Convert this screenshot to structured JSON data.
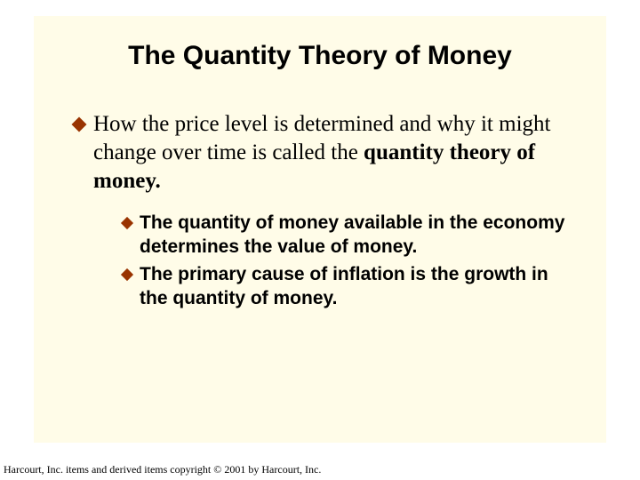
{
  "slide": {
    "background_color": "#fffce8",
    "title": "The Quantity Theory of Money",
    "title_fontsize": 30,
    "title_color": "#000000",
    "bullet_color": "#993300",
    "level1": {
      "prefix": "How ",
      "body": "the price level is determined and why it might change over time is called the ",
      "bold_tail": "quantity theory of money.",
      "fontsize": 25
    },
    "level2": [
      {
        "text": "The quantity of money available in the economy determines the value of money."
      },
      {
        "text": "The primary cause of inflation is the growth in the quantity of money."
      }
    ],
    "level2_fontsize": 21
  },
  "footer": {
    "text": "Harcourt, Inc. items and derived items copyright © 2001 by Harcourt, Inc.",
    "fontsize": 12
  }
}
